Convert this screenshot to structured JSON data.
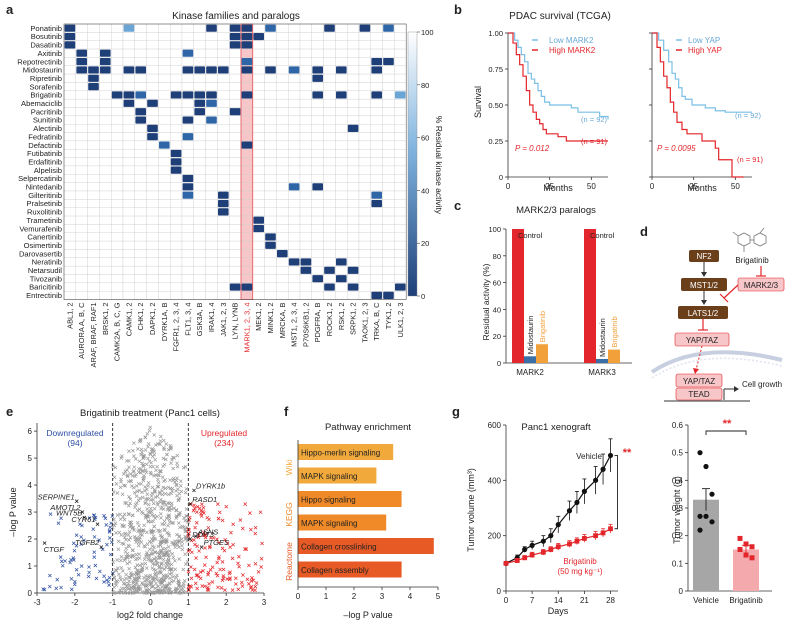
{
  "panels": {
    "a": {
      "label": "a",
      "title": "Kinase families and paralogs",
      "rows": [
        "Ponatinib",
        "Bosutinib",
        "Dasatinib",
        "Axitinib",
        "Repotrectinib",
        "Midostaurin",
        "Ripretinib",
        "Sorafenib",
        "Brigatinib",
        "Abemaciclib",
        "Pacritinib",
        "Sunitinib",
        "Alectinib",
        "Fedratinib",
        "Defactinib",
        "Futibatinib",
        "Erdafitinib",
        "Alpelisib",
        "Selpercatinib",
        "Nintedanib",
        "Gilteritinib",
        "Pralsetinib",
        "Ruxolitinib",
        "Trametinib",
        "Vemurafenib",
        "Canertinib",
        "Osimertinib",
        "Darovasertib",
        "Neratinib",
        "Netarsudil",
        "Tivozanib",
        "Baricitinib",
        "Entrectinib"
      ],
      "cols": [
        "ABL1, 2",
        "AURORA A, B, C",
        "ARAF, BRAF, RAF1",
        "BRSK1, 2",
        "CAMK2A, B, C, G",
        "CAMK1, 2",
        "CHK1, 2",
        "DAPK1, 2",
        "DYRK1A, B",
        "FGFR1, 2, 3, 4",
        "FLT1, 3, 4",
        "GSK3A, B",
        "IRAK1, 4",
        "JAK1, 2, 3",
        "LYN, LYNB",
        "MARK1, 2, 3, 4",
        "MEK1, 2",
        "MINK1, 2",
        "MRCKA, B",
        "MST1, 2, 3, 4",
        "P70S6KB1, 2",
        "PDGFRA, B",
        "ROCK1, 2",
        "RSK1, 2",
        "SRPK1, 2",
        "TAOK1, 2, 3",
        "TRKA, B, C",
        "TYK1, 2",
        "ULK1, 2, 3"
      ],
      "highlight_col": "MARK1, 2, 3, 4",
      "colorbar_label": "% Residual kinase activity",
      "colorbar_ticks": [
        "100",
        "80",
        "60",
        "40",
        "20",
        "0"
      ],
      "heatmap_cells": [
        [
          0,
          0,
          0
        ],
        [
          0,
          5,
          2
        ],
        [
          0,
          12,
          0
        ],
        [
          0,
          14,
          0
        ],
        [
          0,
          15,
          0
        ],
        [
          0,
          17,
          1
        ],
        [
          0,
          22,
          0
        ],
        [
          0,
          25,
          0
        ],
        [
          0,
          27,
          1
        ],
        [
          1,
          0,
          0
        ],
        [
          1,
          14,
          0
        ],
        [
          1,
          15,
          0
        ],
        [
          1,
          16,
          0
        ],
        [
          2,
          0,
          0
        ],
        [
          2,
          14,
          0
        ],
        [
          2,
          15,
          0
        ],
        [
          3,
          1,
          0
        ],
        [
          3,
          3,
          0
        ],
        [
          3,
          10,
          1
        ],
        [
          4,
          1,
          0
        ],
        [
          4,
          3,
          0
        ],
        [
          4,
          15,
          1
        ],
        [
          4,
          26,
          0
        ],
        [
          4,
          27,
          0
        ],
        [
          5,
          1,
          0
        ],
        [
          5,
          2,
          0
        ],
        [
          5,
          3,
          0
        ],
        [
          5,
          5,
          0
        ],
        [
          5,
          6,
          0
        ],
        [
          5,
          10,
          0
        ],
        [
          5,
          11,
          0
        ],
        [
          5,
          12,
          0
        ],
        [
          5,
          13,
          0
        ],
        [
          5,
          15,
          0
        ],
        [
          5,
          17,
          0
        ],
        [
          5,
          19,
          1
        ],
        [
          5,
          21,
          0
        ],
        [
          5,
          23,
          0
        ],
        [
          5,
          26,
          0
        ],
        [
          6,
          2,
          0
        ],
        [
          6,
          21,
          0
        ],
        [
          7,
          2,
          0
        ],
        [
          8,
          4,
          0
        ],
        [
          8,
          5,
          0
        ],
        [
          8,
          6,
          1
        ],
        [
          8,
          9,
          0
        ],
        [
          8,
          10,
          0
        ],
        [
          8,
          11,
          0
        ],
        [
          8,
          12,
          0
        ],
        [
          8,
          15,
          0
        ],
        [
          8,
          21,
          0
        ],
        [
          8,
          23,
          0
        ],
        [
          8,
          26,
          0
        ],
        [
          8,
          28,
          2
        ],
        [
          9,
          5,
          0
        ],
        [
          9,
          7,
          0
        ],
        [
          9,
          11,
          0
        ],
        [
          9,
          12,
          1
        ],
        [
          10,
          6,
          0
        ],
        [
          10,
          11,
          0
        ],
        [
          10,
          14,
          0
        ],
        [
          11,
          6,
          0
        ],
        [
          11,
          10,
          0
        ],
        [
          11,
          12,
          1
        ],
        [
          12,
          7,
          0
        ],
        [
          12,
          24,
          0
        ],
        [
          13,
          7,
          0
        ],
        [
          13,
          10,
          1
        ],
        [
          14,
          8,
          1
        ],
        [
          14,
          15,
          0
        ],
        [
          15,
          9,
          0
        ],
        [
          16,
          9,
          0
        ],
        [
          17,
          9,
          0
        ],
        [
          18,
          10,
          0
        ],
        [
          19,
          10,
          0
        ],
        [
          19,
          19,
          1
        ],
        [
          19,
          21,
          0
        ],
        [
          20,
          10,
          1
        ],
        [
          20,
          13,
          0
        ],
        [
          20,
          26,
          1
        ],
        [
          21,
          13,
          0
        ],
        [
          21,
          26,
          0
        ],
        [
          22,
          13,
          0
        ],
        [
          23,
          16,
          0
        ],
        [
          24,
          16,
          0
        ],
        [
          25,
          17,
          0
        ],
        [
          26,
          17,
          0
        ],
        [
          27,
          18,
          0
        ],
        [
          28,
          19,
          0
        ],
        [
          28,
          20,
          0
        ],
        [
          28,
          23,
          0
        ],
        [
          29,
          20,
          0
        ],
        [
          29,
          22,
          0
        ],
        [
          29,
          24,
          0
        ],
        [
          30,
          21,
          0
        ],
        [
          30,
          23,
          0
        ],
        [
          31,
          14,
          0
        ],
        [
          31,
          15,
          0
        ],
        [
          31,
          22,
          0
        ],
        [
          31,
          24,
          0
        ],
        [
          31,
          28,
          0
        ],
        [
          32,
          26,
          0
        ],
        [
          32,
          27,
          0
        ]
      ]
    },
    "b": {
      "label": "b",
      "title": "PDAC survival (TCGA)",
      "ylabel": "Survival",
      "xlabel": "Months",
      "yticks": [
        "0",
        "0.25",
        "0.50",
        "0.75",
        "1.00"
      ],
      "xticks": [
        "0",
        "25",
        "50"
      ],
      "left": {
        "legend_low": "Low MARK2",
        "legend_high": "High MARK2",
        "n_low": "(n = 92)",
        "n_high": "(n = 91)",
        "pvalue": "P = 0.012"
      },
      "right": {
        "legend_low": "Low YAP",
        "legend_high": "High YAP",
        "n_low": "(n = 92)",
        "n_high": "(n = 91)",
        "pvalue": "P = 0.0095"
      }
    },
    "c": {
      "label": "c",
      "title": "MARK2/3 paralogs",
      "ylabel": "Residual activity (%)",
      "yticks": [
        "0",
        "20",
        "40",
        "60",
        "80",
        "100"
      ],
      "groups": [
        "MARK2",
        "MARK3"
      ],
      "bar_labels": [
        "Control",
        "Midostaurin",
        "Brigatinib"
      ]
    },
    "d": {
      "label": "d",
      "nodes": {
        "nf2": "NF2",
        "mst": "MST1/2",
        "lats": "LATS1/2",
        "yap": "YAP/TAZ",
        "yapn": "YAP/TAZ",
        "tead": "TEAD",
        "mark": "MARK2/3",
        "drug": "Brigatinib",
        "growth": "Cell growth"
      }
    },
    "e": {
      "label": "e",
      "title": "Brigatinib treatment (Panc1 cells)",
      "down_label": "Downregulated",
      "down_n": "(94)",
      "up_label": "Upregulated",
      "up_n": "(234)",
      "xlabel": "log2 fold change",
      "ylabel": "–log P value",
      "xticks": [
        "-3",
        "-2",
        "-1",
        "0",
        "1",
        "2",
        "3"
      ],
      "yticks": [
        "0",
        "1",
        "2",
        "3",
        "4",
        "5",
        "6"
      ],
      "genes_left": [
        "SERPINE1",
        "AMOTL2",
        "WNT5B",
        "CYR61",
        "CTGF",
        "TGFB2"
      ],
      "genes_right": [
        "DYRK1b",
        "RASD1",
        "ASNS",
        "DDIT3",
        "PTGES"
      ]
    },
    "f": {
      "label": "f",
      "title": "Pathway enrichment",
      "xlabel": "–log P value",
      "xticks": [
        "0",
        "1",
        "2",
        "3",
        "4",
        "5"
      ],
      "categories": [
        "Wiki",
        "KEGG",
        "Reactome"
      ],
      "category_colors": [
        "#f2a93b",
        "#f08a28",
        "#e85a25"
      ]
    },
    "g": {
      "label": "g",
      "title": "Panc1 xenograft",
      "ylabel": "Tumor volume (mm³)",
      "xlabel": "Days",
      "xticks": [
        "0",
        "7",
        "14",
        "21",
        "28"
      ],
      "yticks": [
        "0",
        "200",
        "400",
        "600"
      ],
      "vehicle_label": "Vehicle",
      "brig_label": "Brigatinib",
      "brig_dose": "(50 mg kg⁻¹)",
      "sig": "**",
      "bar_ylabel": "Tumor weight (g)",
      "bar_yticks": [
        "0",
        "0.1",
        "0.2",
        "0.3",
        "0.4",
        "0.5",
        "0.6"
      ],
      "bar_groups": [
        "Vehicle",
        "Brigatinib"
      ]
    }
  },
  "chart_data": [
    {
      "type": "line",
      "title": "PDAC survival (TCGA)",
      "xlabel": "Months",
      "ylabel": "Survival",
      "xlim": [
        0,
        60
      ],
      "ylim": [
        0,
        1
      ],
      "series": [
        {
          "name": "Low MARK2",
          "color": "#7bbfe6",
          "x": [
            0,
            4,
            6,
            8,
            10,
            12,
            14,
            16,
            18,
            20,
            22,
            25,
            28,
            30,
            34,
            38,
            42,
            46,
            50,
            55,
            60
          ],
          "y": [
            1.0,
            0.95,
            0.9,
            0.85,
            0.8,
            0.72,
            0.68,
            0.65,
            0.6,
            0.56,
            0.52,
            0.5,
            0.5,
            0.5,
            0.5,
            0.48,
            0.45,
            0.45,
            0.45,
            0.42,
            0.4
          ]
        },
        {
          "name": "High MARK2",
          "color": "#e3262b",
          "x": [
            0,
            3,
            5,
            7,
            9,
            11,
            13,
            15,
            17,
            19,
            21,
            23,
            26,
            30,
            35,
            40,
            50,
            60
          ],
          "y": [
            1.0,
            0.93,
            0.85,
            0.78,
            0.7,
            0.6,
            0.5,
            0.45,
            0.4,
            0.37,
            0.33,
            0.3,
            0.3,
            0.28,
            0.25,
            0.25,
            0.25,
            0.25
          ]
        }
      ]
    },
    {
      "type": "line",
      "title": "PDAC survival (TCGA)",
      "xlabel": "Months",
      "ylabel": "Survival",
      "xlim": [
        0,
        60
      ],
      "ylim": [
        0,
        1
      ],
      "series": [
        {
          "name": "Low YAP",
          "color": "#7bbfe6",
          "x": [
            0,
            4,
            7,
            10,
            12,
            14,
            16,
            18,
            20,
            24,
            28,
            32,
            38,
            44,
            50,
            60
          ],
          "y": [
            1.0,
            0.95,
            0.88,
            0.8,
            0.72,
            0.68,
            0.62,
            0.56,
            0.54,
            0.5,
            0.5,
            0.48,
            0.46,
            0.45,
            0.45,
            0.45
          ]
        },
        {
          "name": "High YAP",
          "color": "#e3262b",
          "x": [
            0,
            3,
            5,
            7,
            9,
            11,
            13,
            15,
            18,
            21,
            25,
            30,
            38,
            40,
            46,
            48,
            55
          ],
          "y": [
            1.0,
            0.9,
            0.8,
            0.7,
            0.62,
            0.52,
            0.45,
            0.38,
            0.33,
            0.3,
            0.3,
            0.25,
            0.2,
            0.12,
            0.12,
            0.0,
            0.0
          ]
        }
      ]
    },
    {
      "type": "bar",
      "title": "MARK2/3 paralogs",
      "ylabel": "Residual activity (%)",
      "ylim": [
        0,
        100
      ],
      "categories": [
        "MARK2",
        "MARK3"
      ],
      "series": [
        {
          "name": "Control",
          "color": "#e3262b",
          "values": [
            100,
            100
          ]
        },
        {
          "name": "Midostaurin",
          "color": "#3a6fa8",
          "values": [
            5,
            3
          ]
        },
        {
          "name": "Brigatinib",
          "color": "#f2a03a",
          "values": [
            14,
            10
          ]
        }
      ]
    },
    {
      "type": "scatter",
      "title": "Brigatinib treatment (Panc1 cells)",
      "xlabel": "log2 fold change",
      "ylabel": "–log P value",
      "xlim": [
        -3,
        3
      ],
      "ylim": [
        0,
        6.3
      ],
      "highlighted_points": [
        {
          "label": "SERPINE1",
          "x": -1.95,
          "y": 3.4
        },
        {
          "label": "AMOTL2",
          "x": -1.8,
          "y": 3.0
        },
        {
          "label": "WNT5B",
          "x": -1.75,
          "y": 2.8
        },
        {
          "label": "CYR61",
          "x": -1.4,
          "y": 2.55
        },
        {
          "label": "CTGF",
          "x": -2.8,
          "y": 1.85
        },
        {
          "label": "TGFB2",
          "x": -1.3,
          "y": 1.7
        },
        {
          "label": "DYRK1b",
          "x": 1.15,
          "y": 3.8
        },
        {
          "label": "RASD1",
          "x": 1.05,
          "y": 3.3
        },
        {
          "label": "ASNS",
          "x": 1.2,
          "y": 2.1
        },
        {
          "label": "DDIT3",
          "x": 1.05,
          "y": 2.0
        },
        {
          "label": "PTGES",
          "x": 1.35,
          "y": 1.7
        }
      ]
    },
    {
      "type": "bar",
      "title": "Pathway enrichment",
      "xlabel": "–log P value",
      "xlim": [
        0,
        5
      ],
      "categories": [
        "Hippo-merlin signaling",
        "MAPK signaling",
        "Hippo signaling",
        "MAPK signaling",
        "Collagen crosslinking",
        "Collagen assembly"
      ],
      "groups": [
        "Wiki",
        "Wiki",
        "KEGG",
        "KEGG",
        "Reactome",
        "Reactome"
      ],
      "values": [
        3.4,
        2.8,
        3.7,
        3.15,
        4.85,
        3.7
      ]
    },
    {
      "type": "line",
      "title": "Panc1 xenograft",
      "xlabel": "Days",
      "ylabel": "Tumor volume (mm³)",
      "xlim": [
        0,
        30
      ],
      "ylim": [
        0,
        600
      ],
      "series": [
        {
          "name": "Vehicle",
          "color": "#111111",
          "x": [
            0,
            3,
            5,
            7,
            10,
            12,
            14,
            17,
            19,
            21,
            24,
            26,
            28
          ],
          "y": [
            100,
            120,
            150,
            165,
            180,
            200,
            240,
            290,
            320,
            360,
            400,
            440,
            490
          ],
          "err": [
            5,
            10,
            10,
            15,
            20,
            25,
            30,
            35,
            40,
            45,
            50,
            55,
            60
          ]
        },
        {
          "name": "Brigatinib",
          "color": "#e3262b",
          "x": [
            0,
            3,
            5,
            7,
            10,
            12,
            14,
            17,
            19,
            21,
            24,
            26,
            28
          ],
          "y": [
            100,
            110,
            120,
            130,
            140,
            150,
            160,
            170,
            180,
            190,
            200,
            210,
            225
          ],
          "err": [
            5,
            8,
            8,
            10,
            10,
            10,
            12,
            12,
            12,
            14,
            15,
            15,
            16
          ]
        }
      ]
    },
    {
      "type": "bar",
      "ylabel": "Tumor weight (g)",
      "ylim": [
        0,
        0.6
      ],
      "categories": [
        "Vehicle",
        "Brigatinib"
      ],
      "values": [
        0.33,
        0.15
      ],
      "errors": [
        0.04,
        0.015
      ],
      "colors": [
        "#a6a6a6",
        "#f4a9ad"
      ],
      "points": [
        [
          0.5,
          0.45,
          0.35,
          0.27,
          0.27,
          0.25,
          0.22
        ],
        [
          0.19,
          0.17,
          0.16,
          0.15,
          0.13,
          0.12
        ]
      ]
    }
  ]
}
